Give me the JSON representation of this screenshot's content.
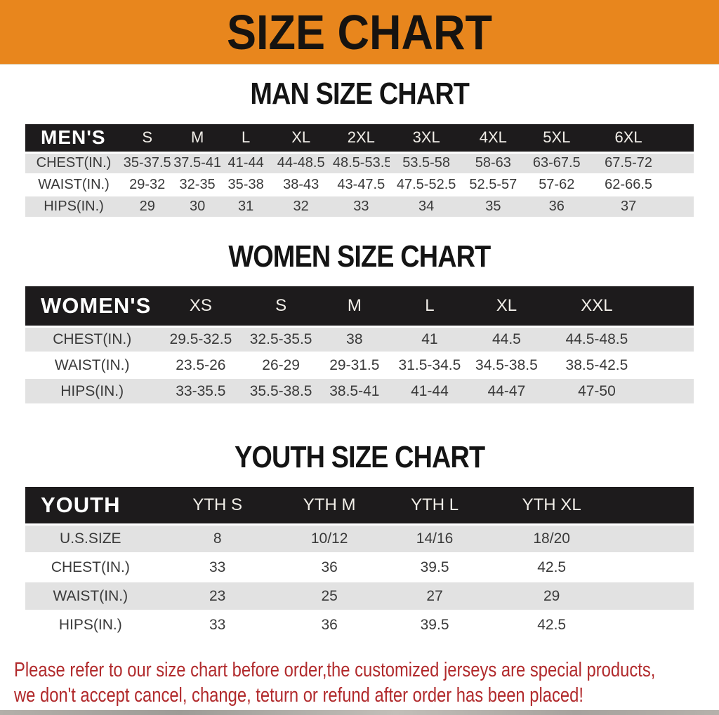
{
  "banner": {
    "title": "SIZE CHART"
  },
  "sections": [
    {
      "heading": "MAN SIZE CHART",
      "header_label": "MEN'S",
      "sizes": [
        "S",
        "M",
        "L",
        "XL",
        "2XL",
        "3XL",
        "4XL",
        "5XL",
        "6XL"
      ],
      "rows": [
        {
          "label": "CHEST(IN.)",
          "values": [
            "35-37.5",
            "37.5-41",
            "41-44",
            "44-48.5",
            "48.5-53.5",
            "53.5-58",
            "58-63",
            "63-67.5",
            "67.5-72"
          ]
        },
        {
          "label": "WAIST(IN.)",
          "values": [
            "29-32",
            "32-35",
            "35-38",
            "38-43",
            "43-47.5",
            "47.5-52.5",
            "52.5-57",
            "57-62",
            "62-66.5"
          ]
        },
        {
          "label": "HIPS(IN.)",
          "values": [
            "29",
            "30",
            "31",
            "32",
            "33",
            "34",
            "35",
            "36",
            "37"
          ]
        }
      ]
    },
    {
      "heading": "WOMEN SIZE CHART",
      "header_label": "WOMEN'S",
      "sizes": [
        "XS",
        "S",
        "M",
        "L",
        "XL",
        "XXL"
      ],
      "rows": [
        {
          "label": "CHEST(IN.)",
          "values": [
            "29.5-32.5",
            "32.5-35.5",
            "38",
            "41",
            "44.5",
            "44.5-48.5"
          ]
        },
        {
          "label": "WAIST(IN.)",
          "values": [
            "23.5-26",
            "26-29",
            "29-31.5",
            "31.5-34.5",
            "34.5-38.5",
            "38.5-42.5"
          ]
        },
        {
          "label": "HIPS(IN.)",
          "values": [
            "33-35.5",
            "35.5-38.5",
            "38.5-41",
            "41-44",
            "44-47",
            "47-50"
          ]
        }
      ]
    },
    {
      "heading": "YOUTH SIZE CHART",
      "header_label": "YOUTH",
      "sizes": [
        "YTH S",
        "YTH M",
        "YTH L",
        "YTH XL"
      ],
      "rows": [
        {
          "label": "U.S.SIZE",
          "values": [
            "8",
            "10/12",
            "14/16",
            "18/20"
          ]
        },
        {
          "label": "CHEST(IN.)",
          "values": [
            "33",
            "36",
            "39.5",
            "42.5"
          ]
        },
        {
          "label": "WAIST(IN.)",
          "values": [
            "23",
            "25",
            "27",
            "29"
          ]
        },
        {
          "label": "HIPS(IN.)",
          "values": [
            "33",
            "36",
            "39.5",
            "42.5"
          ]
        }
      ]
    }
  ],
  "footer": {
    "line1": "Please refer to our size chart before order,the customized jerseys are special products,",
    "line2": "we don't accept cancel, change, teturn or refund after order has been placed!"
  },
  "colors": {
    "banner_bg": "#E8861D",
    "banner_text": "#161310",
    "table_header_bg": "#1D1B1C",
    "table_header_text": "#F2EFE9",
    "row_alt_bg": "#E2E2E2",
    "row_bg": "#FFFFFF",
    "body_text": "#3A3A3A",
    "heading_text": "#141414",
    "disclaimer_text": "#B12A2C",
    "bottom_strip": "#A8A49F"
  }
}
